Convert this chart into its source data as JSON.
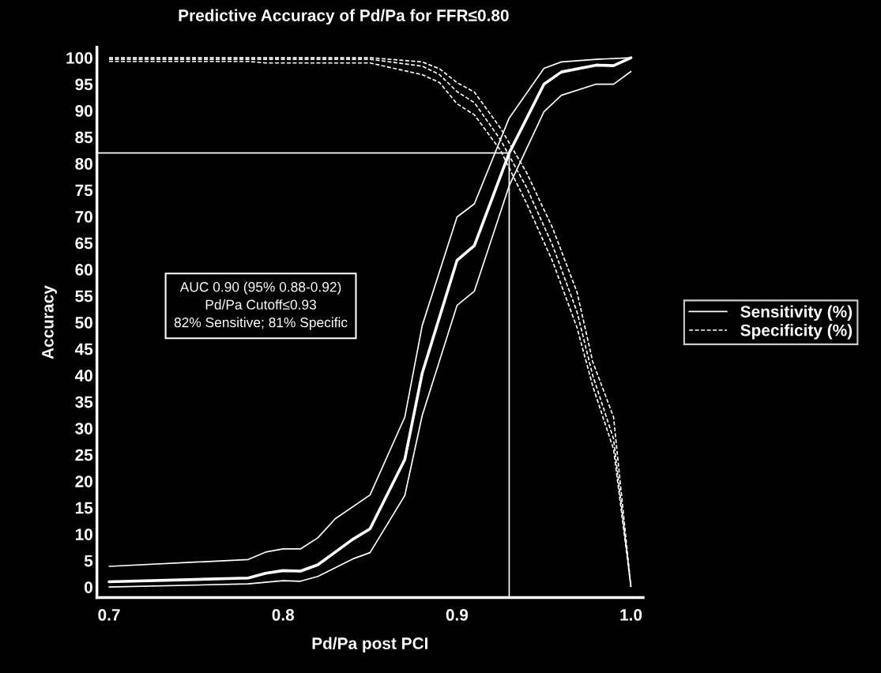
{
  "chart_data": {
    "type": "line",
    "title": "Predictive Accuracy of Pd/Pa for FFR≤0.80",
    "xlabel": "Pd/Pa post PCI",
    "ylabel": "Accuracy",
    "xlim": [
      0.693,
      1.007
    ],
    "ylim": [
      -2,
      102
    ],
    "xticks": [
      {
        "value": 0.7,
        "label": "0.7"
      },
      {
        "value": 0.8,
        "label": "0.8"
      },
      {
        "value": 0.9,
        "label": "0.9"
      },
      {
        "value": 1.0,
        "label": "1.0"
      }
    ],
    "yticks": [
      0,
      5,
      10,
      15,
      20,
      25,
      30,
      35,
      40,
      45,
      50,
      55,
      60,
      65,
      70,
      75,
      80,
      85,
      90,
      95,
      100
    ],
    "grid": false,
    "legend": "right",
    "marker": "none",
    "series": [
      {
        "name": "Sensitivity (%)",
        "color": "#ffffff",
        "line_style": "solid",
        "x": [
          0.7,
          0.78,
          0.79,
          0.8,
          0.81,
          0.82,
          0.84,
          0.85,
          0.87,
          0.88,
          0.9,
          0.91,
          0.93,
          0.95,
          0.96,
          0.98,
          0.99,
          1.0
        ],
        "values": [
          1.0,
          1.7,
          2.6,
          3.1,
          3.0,
          4.2,
          9.0,
          11.0,
          24.1,
          40.4,
          61.7,
          64.5,
          82,
          95.0,
          97.3,
          98.6,
          98.5,
          100
        ]
      },
      {
        "color": "#ffffff",
        "line_style": "solid",
        "x": [
          0.7,
          0.78,
          0.79,
          0.8,
          0.81,
          0.82,
          0.83,
          0.85,
          0.87,
          0.88,
          0.9,
          0.91,
          0.93,
          0.95,
          0.96,
          0.98,
          1.0
        ],
        "values": [
          3.9,
          5.2,
          6.6,
          7.2,
          7.2,
          9.3,
          12.9,
          17.4,
          32.1,
          49.4,
          69.9,
          72.4,
          88.6,
          98.0,
          99.2,
          99.7,
          100
        ]
      },
      {
        "color": "#ffffff",
        "line_style": "solid",
        "x": [
          0.7,
          0.78,
          0.8,
          0.81,
          0.82,
          0.84,
          0.85,
          0.87,
          0.88,
          0.9,
          0.91,
          0.93,
          0.95,
          0.96,
          0.98,
          0.99,
          1.0
        ],
        "values": [
          0.0,
          0.6,
          1.2,
          1.1,
          2.0,
          5.3,
          6.5,
          17.3,
          32.4,
          53.2,
          55.9,
          75.8,
          89.8,
          92.9,
          95.0,
          95.0,
          97.4
        ]
      },
      {
        "name": "Specificity (%)",
        "color": "#ffffff",
        "line_style": "dashed",
        "x": [
          0.7,
          0.85,
          0.88,
          0.89,
          0.9,
          0.91,
          0.925,
          0.94,
          0.955,
          0.969,
          0.978,
          0.99,
          1.0
        ],
        "values": [
          99.7,
          99.7,
          98.4,
          96.8,
          93.6,
          91.5,
          84.5,
          75.5,
          64.5,
          52,
          40,
          28,
          0
        ]
      },
      {
        "color": "#ffffff",
        "line_style": "dashed",
        "x": [
          0.7,
          0.85,
          0.88,
          0.89,
          0.9,
          0.91,
          0.925,
          0.94,
          0.955,
          0.969,
          0.978,
          0.99,
          1.0
        ],
        "values": [
          100,
          100,
          99.2,
          97.9,
          95.3,
          93.5,
          86.7,
          78.3,
          67.8,
          55.7,
          42.6,
          32.1,
          0
        ]
      },
      {
        "color": "#ffffff",
        "line_style": "dashed",
        "x": [
          0.7,
          0.78,
          0.79,
          0.85,
          0.88,
          0.89,
          0.9,
          0.91,
          0.925,
          0.94,
          0.955,
          0.969,
          0.978,
          0.99,
          1.0
        ],
        "values": [
          99.3,
          99.3,
          99.0,
          99.0,
          96.8,
          95.3,
          91.3,
          89.2,
          82.5,
          72.5,
          61.5,
          49,
          38,
          26,
          0
        ]
      }
    ],
    "ref_lines": [
      {
        "axis": "y",
        "value": 82,
        "color": "#ffffff"
      },
      {
        "axis": "x",
        "value": 0.93,
        "color": "#ffffff"
      }
    ],
    "annotations": [
      "AUC 0.90 (95% 0.88-0.92)\nPd/Pa Cutoff≤0.93\n82% Sensitive; 81% Specific"
    ]
  }
}
